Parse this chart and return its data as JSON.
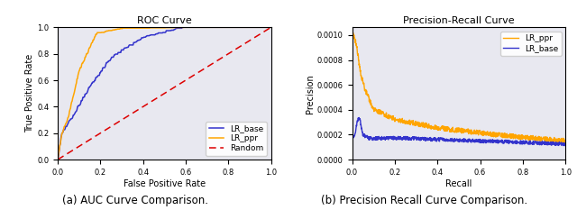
{
  "fig_width": 6.4,
  "fig_height": 2.33,
  "dpi": 100,
  "bg_color": "#e8e8f0",
  "roc_title": "ROC Curve",
  "roc_xlabel": "False Positive Rate",
  "roc_ylabel": "True Positive Rate",
  "roc_caption": "(a) AUC Curve Comparison.",
  "pr_title": "Precision-Recall Curve",
  "pr_xlabel": "Recall",
  "pr_ylabel": "Precision",
  "pr_caption": "(b) Precision Recall Curve Comparison.",
  "color_base": "#3333cc",
  "color_ppr": "#ffa500",
  "color_random": "#dd0000",
  "legend_fontsize": 6.5,
  "axis_fontsize": 7,
  "title_fontsize": 8,
  "caption_fontsize": 8.5
}
